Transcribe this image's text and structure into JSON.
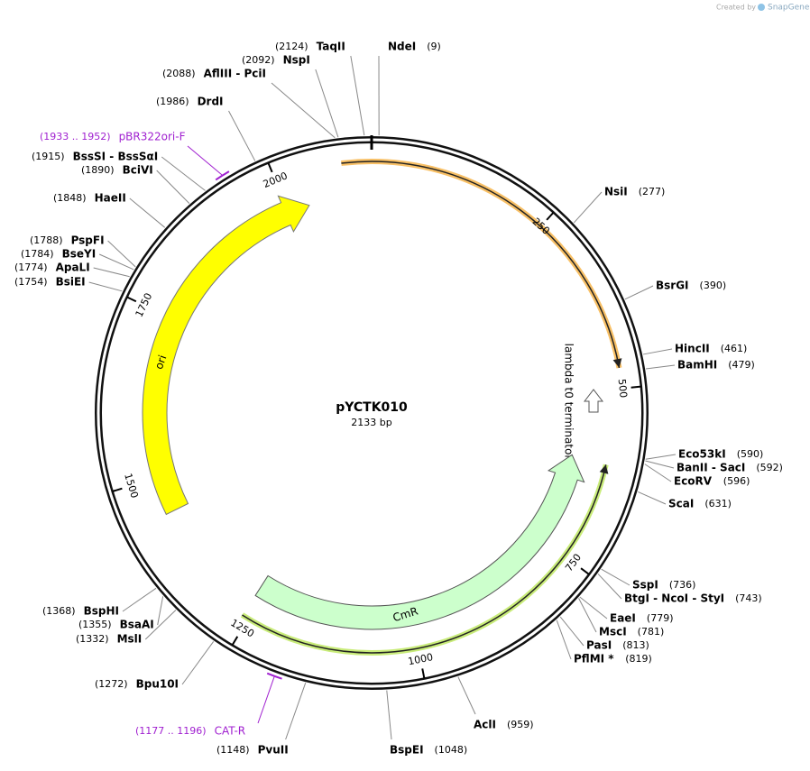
{
  "credit": {
    "prefix": "Created by",
    "brand": "SnapGene"
  },
  "plasmid": {
    "name": "pYCTK010",
    "length": {
      "value": 2133,
      "label": "2133 bp"
    }
  },
  "ticks": [
    250,
    500,
    750,
    1000,
    1250,
    1500,
    1750,
    2000
  ],
  "features": [
    {
      "name": "ori"
    },
    {
      "name": "CmR"
    },
    {
      "name": "lambda t0 terminator"
    }
  ],
  "primers": [
    {
      "name": "pBR322ori-F",
      "range": {
        "start": 1933,
        "end": 1952,
        "label": "(1933 .. 1952)"
      }
    },
    {
      "name": "CAT-R",
      "range": {
        "start": 1177,
        "end": 1196,
        "label": "(1177 .. 1196)"
      }
    }
  ],
  "sites": [
    {
      "name": "NdeI",
      "position": {
        "value": 9,
        "label": "(9)"
      }
    },
    {
      "name": "NsiI",
      "position": {
        "value": 277,
        "label": "(277)"
      }
    },
    {
      "name": "BsrGI",
      "position": {
        "value": 390,
        "label": "(390)"
      }
    },
    {
      "name": "HincII",
      "position": {
        "value": 461,
        "label": "(461)"
      }
    },
    {
      "name": "BamHI",
      "position": {
        "value": 479,
        "label": "(479)"
      }
    },
    {
      "name": "Eco53kI",
      "position": {
        "value": 590,
        "label": "(590)"
      }
    },
    {
      "name": "BanII  - SacI",
      "position": {
        "value": 592,
        "label": "(592)"
      }
    },
    {
      "name": "EcoRV",
      "position": {
        "value": 596,
        "label": "(596)"
      }
    },
    {
      "name": "ScaI",
      "position": {
        "value": 631,
        "label": "(631)"
      }
    },
    {
      "name": "SspI",
      "position": {
        "value": 736,
        "label": "(736)"
      }
    },
    {
      "name": "BtgI  - NcoI  - StyI",
      "position": {
        "value": 743,
        "label": "(743)"
      }
    },
    {
      "name": "EaeI",
      "position": {
        "value": 779,
        "label": "(779)"
      }
    },
    {
      "name": "MscI",
      "position": {
        "value": 781,
        "label": "(781)"
      }
    },
    {
      "name": "PasI",
      "position": {
        "value": 813,
        "label": "(813)"
      }
    },
    {
      "name": "PflMI *",
      "position": {
        "value": 819,
        "label": "(819)"
      }
    },
    {
      "name": "AclI",
      "position": {
        "value": 959,
        "label": "(959)"
      }
    },
    {
      "name": "BspEI",
      "position": {
        "value": 1048,
        "label": "(1048)"
      }
    },
    {
      "name": "PvuII",
      "position": {
        "value": 1148,
        "label": "(1148)"
      }
    },
    {
      "name": "Bpu10I",
      "position": {
        "value": 1272,
        "label": "(1272)"
      }
    },
    {
      "name": "MslI",
      "position": {
        "value": 1332,
        "label": "(1332)"
      }
    },
    {
      "name": "BsaAI",
      "position": {
        "value": 1355,
        "label": "(1355)"
      }
    },
    {
      "name": "BspHI",
      "position": {
        "value": 1368,
        "label": "(1368)"
      }
    },
    {
      "name": "BsiEI",
      "position": {
        "value": 1754,
        "label": "(1754)"
      }
    },
    {
      "name": "ApaLI",
      "position": {
        "value": 1774,
        "label": "(1774)"
      }
    },
    {
      "name": "BseYI",
      "position": {
        "value": 1784,
        "label": "(1784)"
      }
    },
    {
      "name": "PspFI",
      "position": {
        "value": 1788,
        "label": "(1788)"
      }
    },
    {
      "name": "HaeII",
      "position": {
        "value": 1848,
        "label": "(1848)"
      }
    },
    {
      "name": "BciVI",
      "position": {
        "value": 1890,
        "label": "(1890)"
      }
    },
    {
      "name": "BssSI  - BssSαI",
      "position": {
        "value": 1915,
        "label": "(1915)"
      }
    },
    {
      "name": "DrdI",
      "position": {
        "value": 1986,
        "label": "(1986)"
      }
    },
    {
      "name": "AflIII  - PciI",
      "position": {
        "value": 2088,
        "label": "(2088)"
      }
    },
    {
      "name": "NspI",
      "position": {
        "value": 2092,
        "label": "(2092)"
      }
    },
    {
      "name": "TaqII",
      "position": {
        "value": 2124,
        "label": "(2124)"
      }
    }
  ]
}
